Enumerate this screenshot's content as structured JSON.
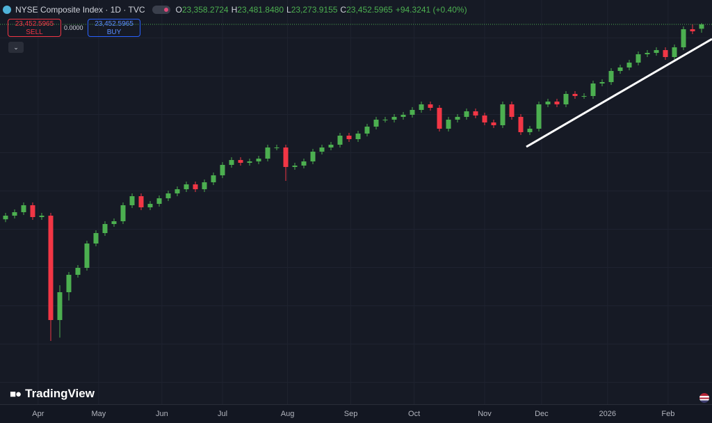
{
  "header": {
    "symbol": "NYSE Composite Index · 1D · TVC",
    "open_key": "O",
    "open": "23,358.2724",
    "high_key": "H",
    "high": "23,481.8480",
    "low_key": "L",
    "low": "23,273.9155",
    "close_key": "C",
    "close": "23,452.5965",
    "change": "+94.3241 (+0.40%)"
  },
  "trade": {
    "sell_price": "23,452.5965",
    "sell_label": "SELL",
    "spread": "0.0000",
    "buy_price": "23,452.5965",
    "buy_label": "BUY"
  },
  "brand": "TradingView",
  "chart_data": {
    "type": "candlestick",
    "up_color": "#4caf50",
    "down_color": "#f23645",
    "xlim": [
      -0.5,
      77.5
    ],
    "ylim": [
      15803,
      23978
    ],
    "xticks": [
      {
        "value": 3.6,
        "label": "Apr"
      },
      {
        "value": 10.3,
        "label": "May"
      },
      {
        "value": 17.3,
        "label": "Jun"
      },
      {
        "value": 24,
        "label": "Jul"
      },
      {
        "value": 31.2,
        "label": "Aug"
      },
      {
        "value": 38.2,
        "label": "Sep"
      },
      {
        "value": 45.2,
        "label": "Oct"
      },
      {
        "value": 53,
        "label": "Nov"
      },
      {
        "value": 59.3,
        "label": "Dec"
      },
      {
        "value": 66.6,
        "label": "2026"
      },
      {
        "value": 73.3,
        "label": "Feb"
      }
    ],
    "ohlc": [
      [
        19250,
        19388,
        19190,
        19328
      ],
      [
        19328,
        19463,
        19268,
        19403
      ],
      [
        19403,
        19613,
        19343,
        19553
      ],
      [
        19553,
        19613,
        19238,
        19298
      ],
      [
        19298,
        19388,
        19238,
        19328
      ],
      [
        19328,
        19388,
        16628,
        17078
      ],
      [
        17078,
        17828,
        16700,
        17678
      ],
      [
        17678,
        18113,
        17500,
        18053
      ],
      [
        18053,
        18263,
        17993,
        18203
      ],
      [
        18203,
        18788,
        18143,
        18728
      ],
      [
        18728,
        19013,
        18668,
        18953
      ],
      [
        18953,
        19208,
        18893,
        19148
      ],
      [
        19148,
        19268,
        19088,
        19208
      ],
      [
        19208,
        19613,
        19148,
        19553
      ],
      [
        19553,
        19808,
        19493,
        19748
      ],
      [
        19748,
        19808,
        19448,
        19508
      ],
      [
        19508,
        19643,
        19448,
        19583
      ],
      [
        19583,
        19763,
        19523,
        19703
      ],
      [
        19703,
        19868,
        19643,
        19808
      ],
      [
        19808,
        19958,
        19748,
        19898
      ],
      [
        19898,
        20063,
        19838,
        20003
      ],
      [
        20003,
        20063,
        19838,
        19898
      ],
      [
        19898,
        20108,
        19838,
        20048
      ],
      [
        20048,
        20258,
        19988,
        20198
      ],
      [
        20198,
        20483,
        20138,
        20423
      ],
      [
        20423,
        20588,
        20363,
        20528
      ],
      [
        20528,
        20588,
        20408,
        20468
      ],
      [
        20468,
        20558,
        20408,
        20498
      ],
      [
        20498,
        20618,
        20438,
        20558
      ],
      [
        20558,
        20858,
        20498,
        20798
      ],
      [
        20798,
        20858,
        20738,
        20798
      ],
      [
        20798,
        20858,
        20078,
        20378
      ],
      [
        20378,
        20468,
        20318,
        20408
      ],
      [
        20408,
        20558,
        20348,
        20498
      ],
      [
        20498,
        20768,
        20438,
        20708
      ],
      [
        20708,
        20858,
        20648,
        20798
      ],
      [
        20798,
        20918,
        20738,
        20858
      ],
      [
        20858,
        21113,
        20798,
        21053
      ],
      [
        21053,
        21113,
        20918,
        20978
      ],
      [
        20978,
        21158,
        20918,
        21098
      ],
      [
        21098,
        21308,
        21038,
        21248
      ],
      [
        21248,
        21458,
        21188,
        21398
      ],
      [
        21398,
        21458,
        21338,
        21398
      ],
      [
        21398,
        21518,
        21338,
        21458
      ],
      [
        21458,
        21563,
        21398,
        21503
      ],
      [
        21503,
        21668,
        21443,
        21608
      ],
      [
        21608,
        21788,
        21548,
        21728
      ],
      [
        21728,
        21788,
        21593,
        21653
      ],
      [
        21653,
        21713,
        21143,
        21203
      ],
      [
        21203,
        21458,
        21143,
        21398
      ],
      [
        21398,
        21518,
        21338,
        21458
      ],
      [
        21458,
        21638,
        21398,
        21578
      ],
      [
        21578,
        21638,
        21428,
        21488
      ],
      [
        21488,
        21548,
        21278,
        21338
      ],
      [
        21338,
        21398,
        21218,
        21278
      ],
      [
        21278,
        21788,
        21218,
        21728
      ],
      [
        21728,
        21788,
        21398,
        21458
      ],
      [
        21458,
        21518,
        21068,
        21128
      ],
      [
        21128,
        21263,
        21068,
        21203
      ],
      [
        21203,
        21788,
        21143,
        21728
      ],
      [
        21728,
        21848,
        21668,
        21788
      ],
      [
        21788,
        21848,
        21668,
        21728
      ],
      [
        21728,
        22013,
        21668,
        21953
      ],
      [
        21953,
        22013,
        21848,
        21908
      ],
      [
        21908,
        21968,
        21848,
        21908
      ],
      [
        21908,
        22238,
        21848,
        22178
      ],
      [
        22178,
        22268,
        22118,
        22208
      ],
      [
        22208,
        22508,
        22148,
        22448
      ],
      [
        22448,
        22583,
        22388,
        22523
      ],
      [
        22523,
        22688,
        22463,
        22628
      ],
      [
        22628,
        22868,
        22568,
        22808
      ],
      [
        22808,
        22898,
        22748,
        22838
      ],
      [
        22838,
        22958,
        22778,
        22898
      ],
      [
        22898,
        22958,
        22688,
        22748
      ],
      [
        22748,
        23018,
        22688,
        22958
      ],
      [
        22958,
        23408,
        22898,
        23348
      ],
      [
        23348,
        23453,
        23243,
        23303
      ],
      [
        23358.2724,
        23481.848,
        23273.9155,
        23452.5965
      ]
    ]
  }
}
